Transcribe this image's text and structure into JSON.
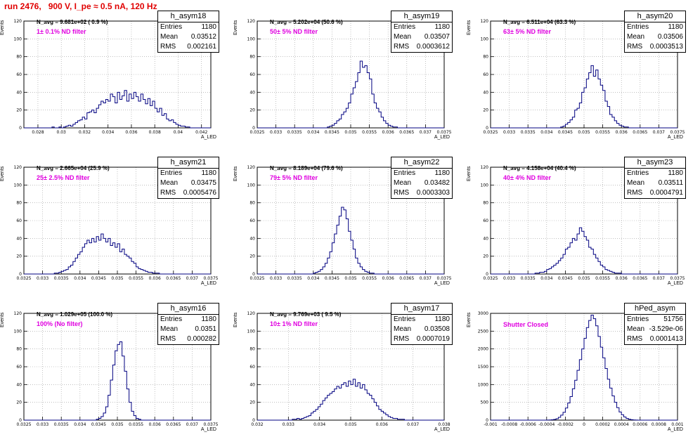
{
  "title": "run 2476,   900 V, I_pe ≈ 0.5 nA, 120 Hz",
  "chart_data": [
    {
      "type": "histogram",
      "name": "h_asym18",
      "entries": "1180",
      "mean": "0.03512",
      "rms": "0.002161",
      "n_avg": "N_avg = 9.681e+02 ( 0.9 %)",
      "filter": "1± 0.1% ND filter",
      "xlim": [
        0.0268,
        0.0428
      ],
      "ylim": [
        0,
        120
      ],
      "xticks": [
        "0.028",
        "0.03",
        "0.032",
        "0.034",
        "0.036",
        "0.038",
        "0.04",
        "0.042"
      ],
      "xtick_values": [
        0.028,
        0.03,
        0.032,
        0.034,
        0.036,
        0.038,
        0.04,
        0.042
      ],
      "yticks": [
        "0",
        "20",
        "40",
        "60",
        "80",
        "100",
        "120"
      ],
      "xlabel": "A_LED",
      "ylabel": "Events",
      "values": [
        0,
        0,
        0,
        0,
        0,
        0,
        0,
        0,
        0,
        0,
        0,
        0,
        1,
        0,
        0,
        1,
        0,
        1,
        2,
        3,
        2,
        4,
        6,
        8,
        9,
        12,
        10,
        17,
        18,
        20,
        17,
        22,
        26,
        30,
        28,
        32,
        30,
        38,
        35,
        28,
        40,
        32,
        36,
        42,
        30,
        38,
        33,
        40,
        35,
        30,
        38,
        32,
        27,
        33,
        25,
        30,
        22,
        18,
        22,
        14,
        16,
        10,
        8,
        9,
        6,
        4,
        3,
        2,
        2,
        1,
        1,
        0,
        0,
        0,
        0,
        0,
        0,
        0,
        0,
        0
      ]
    },
    {
      "type": "histogram",
      "name": "h_asym19",
      "entries": "1180",
      "mean": "0.03507",
      "rms": "0.0003612",
      "n_avg": "N_avg = 5.202e+04 (50.6 %)",
      "filter": "50± 5% ND filter",
      "xlim": [
        0.0325,
        0.0375
      ],
      "ylim": [
        0,
        120
      ],
      "xticks": [
        "0.0325",
        "0.033",
        "0.0335",
        "0.034",
        "0.0345",
        "0.035",
        "0.0355",
        "0.036",
        "0.0365",
        "0.037",
        "0.0375"
      ],
      "xtick_values": [
        0.0325,
        0.033,
        0.0335,
        0.034,
        0.0345,
        0.035,
        0.0355,
        0.036,
        0.0365,
        0.037,
        0.0375
      ],
      "yticks": [
        "0",
        "20",
        "40",
        "60",
        "80",
        "100",
        "120"
      ],
      "xlabel": "A_LED",
      "ylabel": "Events",
      "values": [
        0,
        0,
        0,
        0,
        0,
        0,
        0,
        0,
        0,
        0,
        0,
        0,
        0,
        0,
        0,
        0,
        0,
        0,
        0,
        0,
        0,
        0,
        0,
        0,
        0,
        0,
        0,
        0,
        0,
        0,
        1,
        2,
        3,
        5,
        8,
        10,
        15,
        18,
        22,
        28,
        38,
        45,
        52,
        62,
        75,
        68,
        70,
        62,
        55,
        38,
        28,
        22,
        18,
        12,
        8,
        5,
        3,
        2,
        1,
        1,
        0,
        0,
        0,
        0,
        0,
        0,
        0,
        0,
        0,
        0,
        0,
        0,
        0,
        0,
        0,
        0,
        0,
        0,
        0,
        0
      ]
    },
    {
      "type": "histogram",
      "name": "h_asym20",
      "entries": "1180",
      "mean": "0.03506",
      "rms": "0.0003513",
      "n_avg": "N_avg = 6.511e+04 (63.3 %)",
      "filter": "63± 5% ND filter",
      "xlim": [
        0.0325,
        0.0375
      ],
      "ylim": [
        0,
        120
      ],
      "xticks": [
        "0.0325",
        "0.033",
        "0.0335",
        "0.034",
        "0.0345",
        "0.035",
        "0.0355",
        "0.036",
        "0.0365",
        "0.037",
        "0.0375"
      ],
      "xtick_values": [
        0.0325,
        0.033,
        0.0335,
        0.034,
        0.0345,
        0.035,
        0.0355,
        0.036,
        0.0365,
        0.037,
        0.0375
      ],
      "yticks": [
        "0",
        "20",
        "40",
        "60",
        "80",
        "100",
        "120"
      ],
      "xlabel": "A_LED",
      "ylabel": "Events",
      "values": [
        0,
        0,
        0,
        0,
        0,
        0,
        0,
        0,
        0,
        0,
        0,
        0,
        0,
        0,
        0,
        0,
        0,
        0,
        0,
        0,
        0,
        0,
        0,
        0,
        0,
        0,
        0,
        0,
        0,
        0,
        1,
        2,
        4,
        6,
        9,
        12,
        20,
        22,
        28,
        40,
        45,
        55,
        62,
        70,
        58,
        65,
        55,
        48,
        42,
        30,
        24,
        15,
        12,
        8,
        5,
        3,
        2,
        1,
        1,
        0,
        0,
        0,
        0,
        0,
        0,
        0,
        0,
        0,
        0,
        0,
        0,
        0,
        0,
        0,
        0,
        0,
        0,
        0,
        0,
        0
      ]
    },
    {
      "type": "histogram",
      "name": "h_asym21",
      "entries": "1180",
      "mean": "0.03475",
      "rms": "0.0005476",
      "n_avg": "N_avg = 2.665e+04 (25.9 %)",
      "filter": "25± 2.5% ND filter",
      "xlim": [
        0.0325,
        0.0375
      ],
      "ylim": [
        0,
        120
      ],
      "xticks": [
        "0.0325",
        "0.033",
        "0.0335",
        "0.034",
        "0.0345",
        "0.035",
        "0.0355",
        "0.036",
        "0.0365",
        "0.037",
        "0.0375"
      ],
      "xtick_values": [
        0.0325,
        0.033,
        0.0335,
        0.034,
        0.0345,
        0.035,
        0.0355,
        0.036,
        0.0365,
        0.037,
        0.0375
      ],
      "yticks": [
        "0",
        "20",
        "40",
        "60",
        "80",
        "100",
        "120"
      ],
      "xlabel": "A_LED",
      "ylabel": "Events",
      "values": [
        0,
        0,
        0,
        0,
        0,
        0,
        0,
        0,
        0,
        0,
        0,
        0,
        0,
        1,
        1,
        2,
        3,
        4,
        5,
        8,
        10,
        14,
        18,
        22,
        25,
        30,
        34,
        38,
        35,
        40,
        36,
        42,
        38,
        45,
        40,
        36,
        40,
        32,
        35,
        30,
        34,
        25,
        28,
        22,
        20,
        18,
        14,
        12,
        8,
        6,
        5,
        4,
        3,
        2,
        2,
        1,
        1,
        1,
        0,
        0,
        0,
        0,
        0,
        0,
        0,
        0,
        0,
        0,
        0,
        0,
        0,
        0,
        0,
        0,
        0,
        0,
        0,
        0,
        0,
        0
      ]
    },
    {
      "type": "histogram",
      "name": "h_asym22",
      "entries": "1180",
      "mean": "0.03482",
      "rms": "0.0003303",
      "n_avg": "N_avg = 8.189e+04 (79.6 %)",
      "filter": "79± 5% ND filter",
      "xlim": [
        0.0325,
        0.0375
      ],
      "ylim": [
        0,
        120
      ],
      "xticks": [
        "0.0325",
        "0.033",
        "0.0335",
        "0.034",
        "0.0345",
        "0.035",
        "0.0355",
        "0.036",
        "0.0365",
        "0.037",
        "0.0375"
      ],
      "xtick_values": [
        0.0325,
        0.033,
        0.0335,
        0.034,
        0.0345,
        0.035,
        0.0355,
        0.036,
        0.0365,
        0.037,
        0.0375
      ],
      "yticks": [
        "0",
        "20",
        "40",
        "60",
        "80",
        "100",
        "120"
      ],
      "xlabel": "A_LED",
      "ylabel": "Events",
      "values": [
        0,
        0,
        0,
        0,
        0,
        0,
        0,
        0,
        0,
        0,
        0,
        0,
        0,
        0,
        0,
        0,
        0,
        0,
        0,
        0,
        0,
        0,
        0,
        0,
        1,
        2,
        3,
        5,
        8,
        12,
        18,
        25,
        35,
        45,
        55,
        65,
        75,
        72,
        62,
        48,
        38,
        28,
        18,
        12,
        8,
        5,
        3,
        2,
        1,
        1,
        0,
        0,
        0,
        0,
        0,
        0,
        0,
        0,
        0,
        0,
        0,
        0,
        0,
        0,
        0,
        0,
        0,
        0,
        0,
        0,
        0,
        0,
        0,
        0,
        0,
        0,
        0,
        0,
        0,
        0
      ]
    },
    {
      "type": "histogram",
      "name": "h_asym23",
      "entries": "1180",
      "mean": "0.03511",
      "rms": "0.0004791",
      "n_avg": "N_avg = 4.158e+04 (40.4 %)",
      "filter": "40± 4% ND filter",
      "xlim": [
        0.0325,
        0.0375
      ],
      "ylim": [
        0,
        120
      ],
      "xticks": [
        "0.0325",
        "0.033",
        "0.0335",
        "0.034",
        "0.0345",
        "0.035",
        "0.0355",
        "0.036",
        "0.0365",
        "0.037",
        "0.0375"
      ],
      "xtick_values": [
        0.0325,
        0.033,
        0.0335,
        0.034,
        0.0345,
        0.035,
        0.0355,
        0.036,
        0.0365,
        0.037,
        0.0375
      ],
      "yticks": [
        "0",
        "20",
        "40",
        "60",
        "80",
        "100",
        "120"
      ],
      "xlabel": "A_LED",
      "ylabel": "Events",
      "values": [
        0,
        0,
        0,
        0,
        0,
        0,
        0,
        0,
        0,
        0,
        0,
        0,
        0,
        0,
        0,
        0,
        0,
        0,
        0,
        1,
        1,
        2,
        2,
        3,
        5,
        6,
        8,
        10,
        12,
        15,
        18,
        22,
        28,
        30,
        35,
        40,
        38,
        45,
        52,
        48,
        42,
        38,
        30,
        28,
        22,
        18,
        14,
        10,
        8,
        5,
        4,
        3,
        2,
        1,
        1,
        1,
        0,
        0,
        0,
        0,
        0,
        0,
        0,
        0,
        0,
        0,
        0,
        0,
        0,
        0,
        0,
        0,
        0,
        0,
        0,
        0,
        0,
        0,
        0,
        0
      ]
    },
    {
      "type": "histogram",
      "name": "h_asym16",
      "entries": "1180",
      "mean": "0.0351",
      "rms": "0.000282",
      "n_avg": "N_avg = 1.029e+05 (100.0 %)",
      "filter": "100% (No filter)",
      "xlim": [
        0.0325,
        0.0375
      ],
      "ylim": [
        0,
        120
      ],
      "xticks": [
        "0.0325",
        "0.033",
        "0.0335",
        "0.034",
        "0.0345",
        "0.035",
        "0.0355",
        "0.036",
        "0.0365",
        "0.037",
        "0.0375"
      ],
      "xtick_values": [
        0.0325,
        0.033,
        0.0335,
        0.034,
        0.0345,
        0.035,
        0.0355,
        0.036,
        0.0365,
        0.037,
        0.0375
      ],
      "yticks": [
        "0",
        "20",
        "40",
        "60",
        "80",
        "100",
        "120"
      ],
      "xlabel": "A_LED",
      "ylabel": "Events",
      "values": [
        0,
        0,
        0,
        0,
        0,
        0,
        0,
        0,
        0,
        0,
        0,
        0,
        0,
        0,
        0,
        0,
        0,
        0,
        0,
        0,
        0,
        0,
        0,
        0,
        0,
        0,
        0,
        0,
        0,
        0,
        0,
        1,
        2,
        4,
        8,
        15,
        28,
        45,
        62,
        78,
        85,
        88,
        72,
        55,
        35,
        20,
        10,
        5,
        2,
        1,
        0,
        0,
        0,
        0,
        0,
        0,
        0,
        0,
        0,
        0,
        0,
        0,
        0,
        0,
        0,
        0,
        0,
        0,
        0,
        0,
        0,
        0,
        0,
        0,
        0,
        0,
        0,
        0,
        0,
        0
      ]
    },
    {
      "type": "histogram",
      "name": "h_asym17",
      "entries": "1180",
      "mean": "0.03508",
      "rms": "0.0007019",
      "n_avg": "N_avg = 9.769e+03 ( 9.5 %)",
      "filter": "10± 1% ND filter",
      "xlim": [
        0.032,
        0.038
      ],
      "ylim": [
        0,
        120
      ],
      "xticks": [
        "0.032",
        "0.033",
        "0.034",
        "0.035",
        "0.036",
        "0.037",
        "0.038"
      ],
      "xtick_values": [
        0.032,
        0.033,
        0.034,
        0.035,
        0.036,
        0.037,
        0.038
      ],
      "yticks": [
        "0",
        "20",
        "40",
        "60",
        "80",
        "100",
        "120"
      ],
      "xlabel": "A_LED",
      "ylabel": "Events",
      "values": [
        0,
        0,
        0,
        0,
        0,
        0,
        0,
        0,
        0,
        0,
        0,
        0,
        0,
        0,
        0,
        1,
        1,
        2,
        1,
        2,
        3,
        4,
        5,
        8,
        10,
        12,
        15,
        18,
        22,
        25,
        28,
        30,
        32,
        35,
        38,
        36,
        40,
        42,
        38,
        44,
        40,
        46,
        38,
        42,
        36,
        40,
        34,
        30,
        28,
        24,
        20,
        16,
        12,
        10,
        8,
        6,
        4,
        3,
        2,
        2,
        1,
        1,
        1,
        0,
        0,
        0,
        0,
        0,
        0,
        0,
        0,
        0,
        0,
        0,
        0,
        0,
        0,
        0,
        0,
        0
      ]
    },
    {
      "type": "histogram",
      "name": "hPed_asym",
      "entries": "51756",
      "mean": "-3.529e-06",
      "rms": "0.0001413",
      "n_avg": "",
      "filter": "Shutter Closed",
      "xlim": [
        -0.001,
        0.001
      ],
      "ylim": [
        0,
        3000
      ],
      "xticks": [
        "-0.001",
        "-0.0008",
        "-0.0006",
        "-0.0004",
        "-0.0002",
        "0",
        "0.0002",
        "0.0004",
        "0.0006",
        "0.0008",
        "0.001"
      ],
      "xtick_values": [
        -0.001,
        -0.0008,
        -0.0006,
        -0.0004,
        -0.0002,
        0,
        0.0002,
        0.0004,
        0.0006,
        0.0008,
        0.001
      ],
      "yticks": [
        "0",
        "500",
        "1000",
        "1500",
        "2000",
        "2500",
        "3000"
      ],
      "xlabel": "A_LED",
      "ylabel": "Events",
      "values": [
        0,
        0,
        0,
        0,
        0,
        0,
        0,
        0,
        0,
        0,
        0,
        0,
        0,
        0,
        0,
        0,
        0,
        0,
        0,
        0,
        0,
        0,
        0,
        0,
        2,
        5,
        10,
        20,
        40,
        80,
        140,
        220,
        340,
        480,
        660,
        880,
        1120,
        1400,
        1700,
        2000,
        2300,
        2600,
        2800,
        2950,
        2850,
        2650,
        2350,
        2050,
        1750,
        1450,
        1150,
        900,
        680,
        500,
        350,
        230,
        150,
        90,
        50,
        25,
        12,
        6,
        3,
        1,
        0,
        0,
        0,
        0,
        0,
        0,
        0,
        0,
        0,
        0,
        0,
        0,
        0,
        0,
        0,
        0
      ]
    }
  ]
}
